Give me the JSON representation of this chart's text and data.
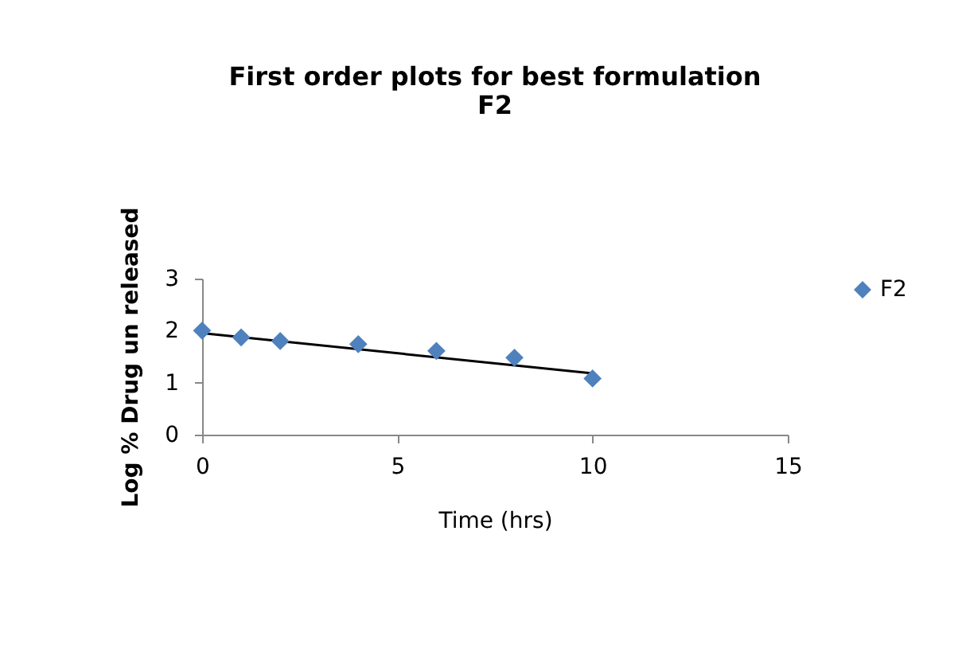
{
  "chart_data": {
    "type": "scatter",
    "title": [
      "First order plots for best formulation",
      "F2"
    ],
    "xlabel": "Time (hrs)",
    "ylabel": "Log % Drug un released",
    "x": [
      0,
      1,
      2,
      4,
      6,
      8,
      10
    ],
    "series": [
      {
        "name": "F2",
        "color": "#4f81bd",
        "marker": "diamond",
        "values": [
          2.0,
          1.87,
          1.8,
          1.74,
          1.61,
          1.48,
          1.08
        ]
      },
      {
        "type": "line",
        "color": "#000000",
        "marker": "none",
        "x": [
          0,
          10
        ],
        "values": [
          1.95,
          1.18
        ]
      }
    ],
    "xlim": [
      0,
      15
    ],
    "xticks": [
      0,
      5,
      10,
      15
    ],
    "ylim": [
      0,
      3
    ],
    "yticks": [
      0,
      1,
      2,
      3
    ],
    "grid": false,
    "legend": "right"
  }
}
